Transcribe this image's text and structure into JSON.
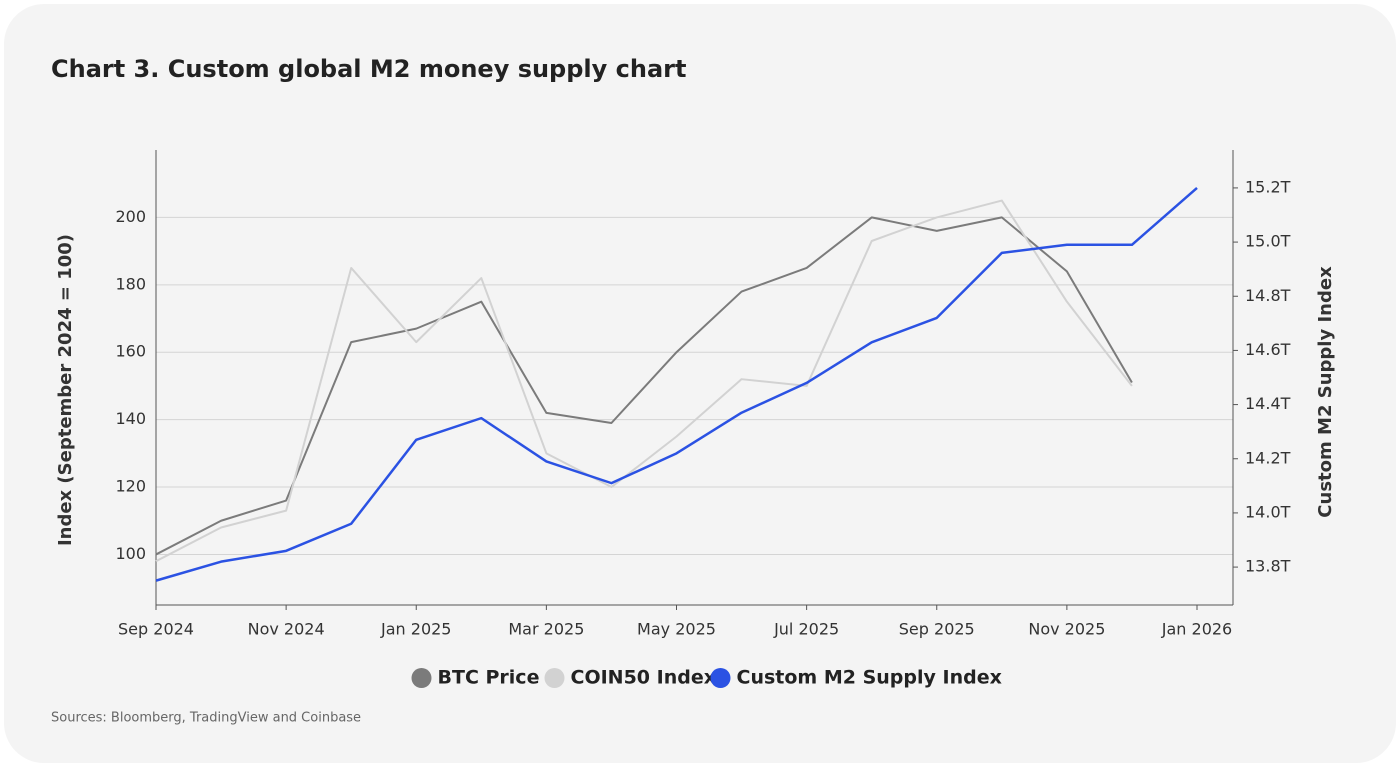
{
  "chart_data": {
    "type": "line",
    "title": "Chart 3. Custom global M2 money supply chart",
    "y_label": "Index (September 2024 = 100)",
    "y2_label": "Custom M2 Supply Index",
    "source": "Sources: Bloomberg, TradingView and Coinbase",
    "x": [
      "2024-09",
      "2024-10",
      "2024-11",
      "2024-12",
      "2025-01",
      "2025-02",
      "2025-03",
      "2025-04",
      "2025-05",
      "2025-06",
      "2025-07",
      "2025-08",
      "2025-09",
      "2025-10",
      "2025-11",
      "2025-12",
      "2026-01"
    ],
    "series": [
      {
        "name": "BTC Price",
        "color": "#7b7b7b",
        "values": [
          100,
          110,
          116,
          163,
          167,
          175,
          142,
          139,
          160,
          178,
          185,
          200,
          196,
          200,
          184,
          151,
          null
        ]
      },
      {
        "name": "COIN50 Index",
        "color": "#d2d2d2",
        "values": [
          98,
          108,
          113,
          185,
          163,
          182,
          130,
          120,
          135,
          152,
          150,
          193,
          200,
          205,
          175,
          150,
          null
        ]
      },
      {
        "name": "Custom M2 Supply Index",
        "color": "#2b52e3",
        "axis": "y2",
        "values": [
          13.75,
          13.82,
          13.86,
          13.96,
          14.27,
          14.35,
          14.19,
          14.11,
          14.22,
          14.37,
          14.48,
          14.63,
          14.72,
          14.96,
          14.99,
          14.99,
          15.2
        ]
      }
    ],
    "xlim": [
      "2024-09",
      "2026-01"
    ],
    "xticks": [
      {
        "value": "2024-09",
        "label": "Sep 2024"
      },
      {
        "value": "2024-11",
        "label": "Nov 2024"
      },
      {
        "value": "2025-01",
        "label": "Jan 2025"
      },
      {
        "value": "2025-03",
        "label": "Mar 2025"
      },
      {
        "value": "2025-05",
        "label": "May 2025"
      },
      {
        "value": "2025-07",
        "label": "Jul 2025"
      },
      {
        "value": "2025-09",
        "label": "Sep 2025"
      },
      {
        "value": "2025-11",
        "label": "Nov 2025"
      },
      {
        "value": "2026-01",
        "label": "Jan 2026"
      }
    ],
    "ylim": [
      85,
      220
    ],
    "yticks": [
      100,
      120,
      140,
      160,
      180,
      200
    ],
    "y2lim": [
      13.66,
      15.34
    ],
    "y2ticks": [
      {
        "value": 13.8,
        "label": "13.8T"
      },
      {
        "value": 14.0,
        "label": "14.0T"
      },
      {
        "value": 14.2,
        "label": "14.2T"
      },
      {
        "value": 14.4,
        "label": "14.4T"
      },
      {
        "value": 14.6,
        "label": "14.6T"
      },
      {
        "value": 14.8,
        "label": "14.8T"
      },
      {
        "value": 15.0,
        "label": "15.0T"
      },
      {
        "value": 15.2,
        "label": "15.2T"
      }
    ],
    "grid": true
  }
}
